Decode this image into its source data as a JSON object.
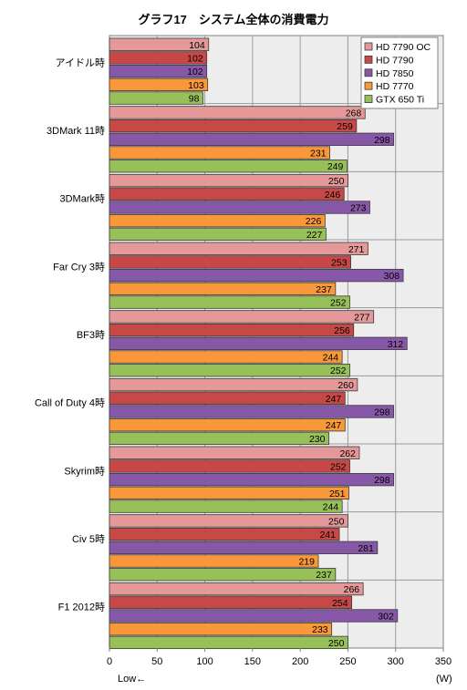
{
  "chart_data": {
    "type": "bar",
    "orientation": "horizontal",
    "title": "グラフ17　システム全体の消費電力",
    "unit_label": "(W)",
    "direction_note": "Low←",
    "xlim": [
      0,
      350
    ],
    "xticks": [
      0,
      50,
      100,
      150,
      200,
      250,
      300,
      350
    ],
    "grid": true,
    "legend_position": "top-right",
    "categories": [
      "アイドル時",
      "3DMark 11時",
      "3DMark時",
      "Far Cry 3時",
      "BF3時",
      "Call of Duty 4時",
      "Skyrim時",
      "Civ 5時",
      "F1 2012時"
    ],
    "series": [
      {
        "name": "HD 7790 OC",
        "color": "#e49898",
        "values": [
          104,
          268,
          250,
          271,
          277,
          260,
          262,
          250,
          266
        ]
      },
      {
        "name": "HD 7790",
        "color": "#c84848",
        "values": [
          102,
          259,
          246,
          253,
          256,
          247,
          252,
          241,
          254
        ]
      },
      {
        "name": "HD 7850",
        "color": "#8858a8",
        "values": [
          102,
          298,
          273,
          308,
          312,
          298,
          298,
          281,
          302
        ]
      },
      {
        "name": "HD 7770",
        "color": "#f89838",
        "values": [
          103,
          231,
          226,
          237,
          244,
          247,
          251,
          219,
          233
        ]
      },
      {
        "name": "GTX 650 Ti",
        "color": "#98c058",
        "values": [
          98,
          249,
          227,
          252,
          252,
          230,
          244,
          237,
          250
        ]
      }
    ]
  }
}
